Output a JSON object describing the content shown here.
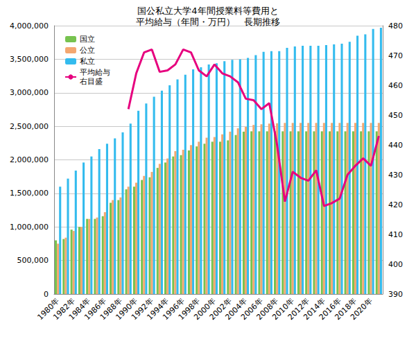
{
  "chart_data": {
    "type": "bar",
    "title": "国公私立大学4年間授業料等費用と\n平均給与（年間・万円）　長期推移",
    "categories": [
      "1980年",
      null,
      "1982年",
      null,
      "1984年",
      null,
      "1986年",
      null,
      "1988年",
      null,
      "1990年",
      null,
      "1992年",
      null,
      "1994年",
      null,
      "1996年",
      null,
      "1998年",
      null,
      "2000年",
      null,
      "2002年",
      null,
      "2004年",
      null,
      "2006年",
      null,
      "2008年",
      null,
      "2010年",
      null,
      "2012年",
      null,
      "2014年",
      null,
      "2016年",
      null,
      "2018年",
      null,
      "2020年",
      null
    ],
    "series": [
      {
        "name": "国立",
        "type": "bar",
        "color": "#77c34f",
        "values": [
          800000,
          820000,
          960000,
          1000000,
          1120000,
          1120000,
          1160000,
          1360000,
          1400000,
          1560000,
          1600000,
          1700000,
          1740000,
          1880000,
          1960000,
          2050000,
          2070000,
          2140000,
          2200000,
          2240000,
          2270000,
          2270000,
          2290000,
          2370000,
          2420000,
          2425000,
          2425000,
          2425000,
          2425000,
          2425000,
          2425000,
          2425000,
          2425000,
          2425000,
          2425000,
          2425000,
          2425000,
          2425000,
          2425000,
          2425000,
          2425000,
          2425000
        ]
      },
      {
        "name": "公立",
        "type": "bar",
        "color": "#f4a770",
        "values": [
          750000,
          840000,
          940000,
          1000000,
          1120000,
          1140000,
          1220000,
          1400000,
          1440000,
          1600000,
          1660000,
          1760000,
          1820000,
          1940000,
          2020000,
          2130000,
          2150000,
          2220000,
          2270000,
          2330000,
          2340000,
          2380000,
          2420000,
          2470000,
          2490000,
          2520000,
          2530000,
          2540000,
          2545000,
          2550000,
          2550000,
          2550000,
          2550000,
          2550000,
          2550000,
          2550000,
          2550000,
          2550000,
          2550000,
          2550000,
          2550000,
          2550000
        ]
      },
      {
        "name": "私立",
        "type": "bar",
        "color": "#33bbee",
        "values": [
          1600000,
          1720000,
          1840000,
          1960000,
          2050000,
          2160000,
          2240000,
          2320000,
          2410000,
          2540000,
          2730000,
          2840000,
          2940000,
          3030000,
          3110000,
          3200000,
          3270000,
          3350000,
          3380000,
          3420000,
          3440000,
          3470000,
          3490000,
          3500000,
          3520000,
          3560000,
          3610000,
          3620000,
          3620000,
          3670000,
          3690000,
          3700000,
          3700000,
          3700000,
          3710000,
          3720000,
          3730000,
          3760000,
          3850000,
          3870000,
          3950000,
          3970000
        ]
      },
      {
        "name": "平均給与\n右目盛",
        "type": "line",
        "axis": "y2",
        "color": "#e6007e",
        "values": [
          null,
          null,
          null,
          null,
          null,
          null,
          null,
          null,
          null,
          452,
          464,
          471,
          472,
          464.5,
          465,
          467,
          472,
          471,
          465,
          463,
          467,
          464,
          463,
          461,
          455.5,
          455,
          452,
          454,
          440,
          421,
          431,
          429,
          428,
          431.5,
          419.5,
          420.5,
          422,
          430,
          433,
          435.5,
          433,
          443
        ]
      }
    ],
    "ylim": [
      0,
      4000000
    ],
    "yticks": [
      0,
      {
        "value": 500000,
        "label": "500,000"
      },
      {
        "value": 1000000,
        "label": "1,000,000"
      },
      {
        "value": 1500000,
        "label": "1,500,000"
      },
      {
        "value": 2000000,
        "label": "2,000,000"
      },
      {
        "value": 2500000,
        "label": "2,500,000"
      },
      {
        "value": 3000000,
        "label": "3,000,000"
      },
      {
        "value": 3500000,
        "label": "3,500,000"
      },
      {
        "value": 4000000,
        "label": "4,000,000"
      }
    ],
    "y2lim": [
      390,
      480
    ],
    "y2ticks": [
      390,
      400,
      410,
      420,
      430,
      440,
      450,
      460,
      470,
      480
    ],
    "grid": true,
    "legend": "upper-left"
  }
}
